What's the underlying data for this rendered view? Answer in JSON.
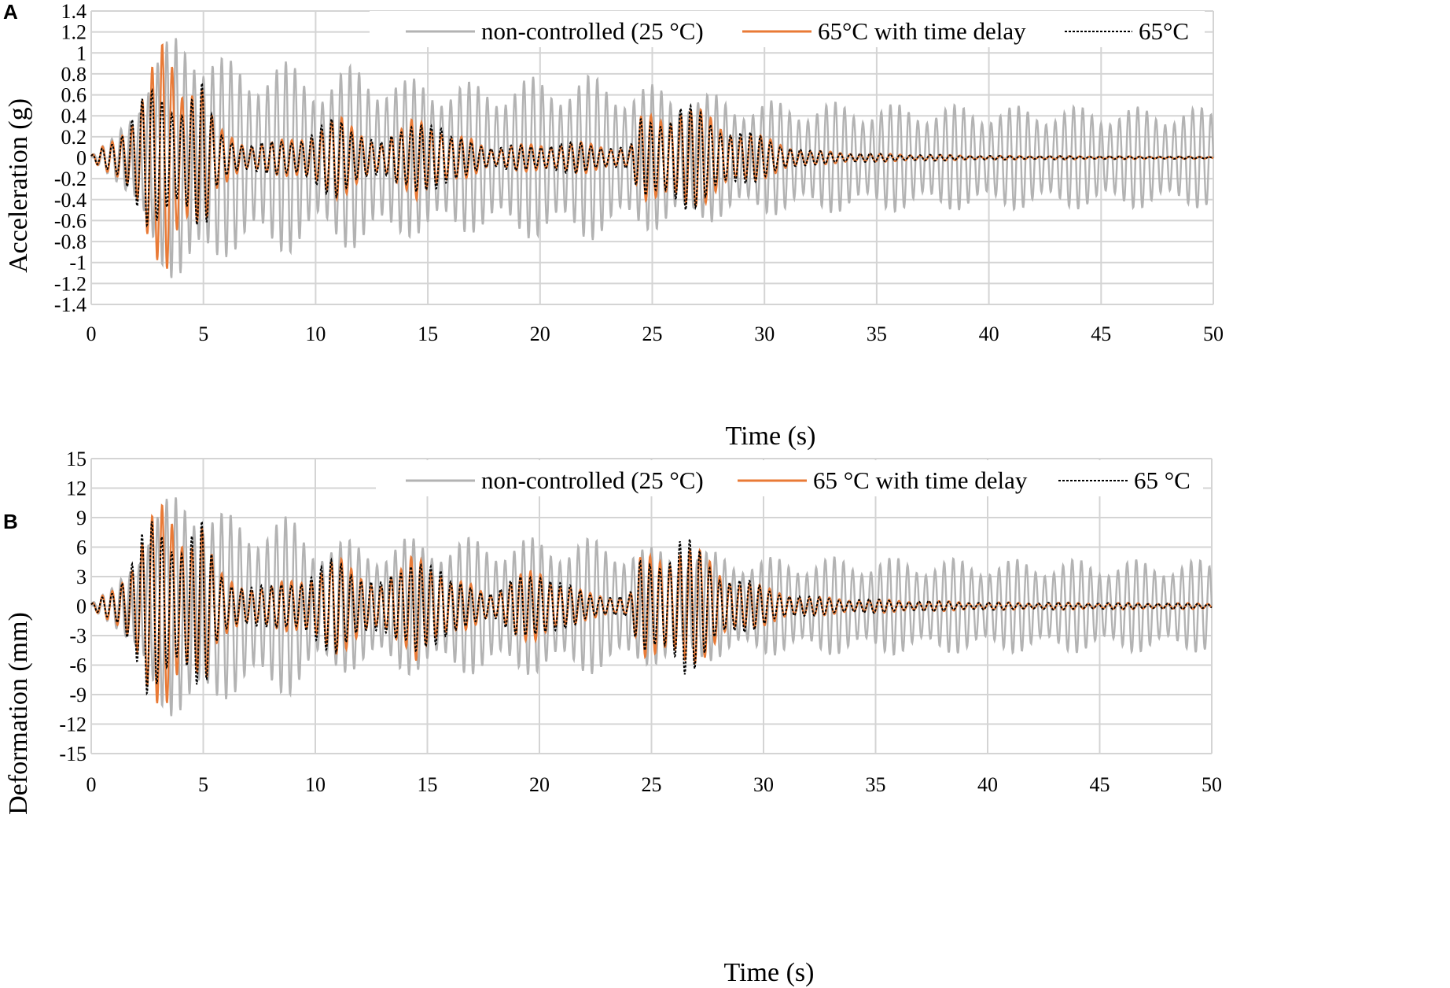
{
  "chart_data": [
    {
      "panel": "A",
      "type": "line",
      "xlabel": "Time (s)",
      "ylabel": "Acceleration (g)",
      "xlim": [
        0,
        50
      ],
      "ylim": [
        -1.4,
        1.4
      ],
      "xticks": [
        "0",
        "5",
        "10",
        "15",
        "20",
        "25",
        "30",
        "35",
        "40",
        "45",
        "50"
      ],
      "yticks": [
        "1.4",
        "1.2",
        "1",
        "0.8",
        "0.6",
        "0.4",
        "0.2",
        "0",
        "-0.2",
        "-0.4",
        "-0.6",
        "-0.8",
        "-1",
        "-1.2",
        "-1.4"
      ],
      "grid": true,
      "legend_position": "top-right",
      "series": [
        {
          "name": "non-controlled (25 °C)",
          "color": "#b3b3b3",
          "style": "solid",
          "envelope": {
            "t": [
              0,
              1,
              2,
              3,
              4,
              4.5,
              5,
              6,
              7,
              8,
              9,
              10,
              11,
              12,
              13,
              14,
              15,
              16,
              17,
              18,
              20,
              22,
              24,
              25,
              26,
              28,
              30,
              35,
              40,
              50
            ],
            "a": [
              0.02,
              0.2,
              0.6,
              1.0,
              1.3,
              1.33,
              1.15,
              0.95,
              0.9,
              0.97,
              0.9,
              0.8,
              0.85,
              0.9,
              0.85,
              0.75,
              0.8,
              0.75,
              0.72,
              0.75,
              0.78,
              0.8,
              0.72,
              0.7,
              0.68,
              0.6,
              0.55,
              0.52,
              0.5,
              0.48
            ]
          }
        },
        {
          "name": "65°C with time delay",
          "color": "#e97a36",
          "style": "solid",
          "envelope": {
            "t": [
              0,
              1,
              2,
              2.5,
              3,
              3.3,
              4,
              4.5,
              5,
              5.5,
              6,
              7,
              8,
              9,
              10,
              11,
              12,
              13,
              14,
              14.5,
              15,
              16,
              17,
              18,
              20,
              22,
              24,
              24.5,
              26,
              26.3,
              28,
              30,
              32,
              35,
              40,
              50
            ],
            "a": [
              0.02,
              0.2,
              0.5,
              0.8,
              1.0,
              1.2,
              0.85,
              0.9,
              0.8,
              0.3,
              0.25,
              0.15,
              0.15,
              0.2,
              0.3,
              0.4,
              0.3,
              0.15,
              0.3,
              0.5,
              0.45,
              0.2,
              0.2,
              0.1,
              0.15,
              0.15,
              0.1,
              0.4,
              0.5,
              0.58,
              0.35,
              0.2,
              0.07,
              0.04,
              0.02,
              0.01
            ]
          }
        },
        {
          "name": "65°C",
          "color": "#000000",
          "style": "dashed",
          "envelope": {
            "t": [
              0,
              1,
              2,
              2.5,
              3,
              4,
              4.5,
              5,
              5.5,
              6,
              7,
              8,
              9,
              10,
              11,
              12,
              13,
              14,
              14.5,
              15,
              16,
              17,
              18,
              20,
              22,
              24,
              24.5,
              26,
              26.3,
              28,
              30,
              32,
              35,
              40,
              50
            ],
            "a": [
              0.02,
              0.2,
              0.5,
              0.65,
              0.65,
              0.6,
              0.7,
              0.75,
              0.3,
              0.22,
              0.15,
              0.15,
              0.2,
              0.3,
              0.4,
              0.3,
              0.15,
              0.3,
              0.5,
              0.45,
              0.2,
              0.2,
              0.1,
              0.15,
              0.15,
              0.1,
              0.4,
              0.5,
              0.55,
              0.35,
              0.2,
              0.07,
              0.04,
              0.02,
              0.01
            ]
          }
        }
      ]
    },
    {
      "panel": "B",
      "type": "line",
      "xlabel": "Time (s)",
      "ylabel": "Deformation (mm)",
      "xlim": [
        0,
        50
      ],
      "ylim": [
        -15,
        15
      ],
      "xticks": [
        "0",
        "5",
        "10",
        "15",
        "20",
        "25",
        "30",
        "35",
        "40",
        "45",
        "50"
      ],
      "yticks": [
        "15",
        "12",
        "9",
        "6",
        "3",
        "0",
        "-3",
        "-6",
        "-9",
        "-12",
        "-15"
      ],
      "grid": true,
      "legend_position": "top-right",
      "series": [
        {
          "name": "non-controlled (25 °C)",
          "color": "#b3b3b3",
          "style": "solid",
          "envelope": {
            "t": [
              0,
              1,
              2,
              3,
              4,
              4.5,
              5,
              6,
              7,
              8,
              9,
              10,
              11,
              12,
              13,
              14,
              15,
              16,
              17,
              18,
              20,
              22,
              24,
              25,
              26,
              28,
              30,
              35,
              40,
              50
            ],
            "a": [
              0.3,
              2,
              6,
              10,
              12.5,
              13,
              11,
              9.5,
              9,
              9.5,
              9,
              7,
              7,
              6.5,
              6.5,
              7,
              7,
              7,
              7,
              7,
              7,
              7,
              6.5,
              6,
              6,
              5.5,
              5,
              5,
              4.8,
              4.7
            ]
          }
        },
        {
          "name": "65 °C with time delay",
          "color": "#e97a36",
          "style": "solid",
          "envelope": {
            "t": [
              0,
              1,
              2,
              2.5,
              3,
              3.3,
              4,
              4.5,
              5,
              5.5,
              6,
              7,
              8,
              9,
              10,
              11,
              12,
              13,
              14,
              14.5,
              15,
              16,
              17,
              18,
              19,
              20,
              21,
              22,
              24,
              24.5,
              26,
              26.3,
              28,
              30,
              32,
              35,
              40,
              50
            ],
            "a": [
              0.2,
              2,
              6,
              9,
              10,
              11,
              9,
              9,
              10,
              4,
              3,
              2.5,
              2,
              3,
              4,
              5,
              4,
              2.5,
              4,
              7,
              6,
              2.5,
              2.5,
              1.5,
              3,
              4.5,
              2.5,
              1.5,
              1,
              5,
              6.5,
              7.5,
              4,
              2,
              1,
              0.7,
              0.4,
              0.3
            ]
          }
        },
        {
          "name": "65 °C",
          "color": "#000000",
          "style": "dashed",
          "envelope": {
            "t": [
              0,
              1,
              2,
              2.5,
              3,
              4,
              4.5,
              5,
              5.5,
              6,
              7,
              8,
              9,
              10,
              11,
              12,
              13,
              14,
              14.5,
              15,
              16,
              17,
              18,
              19,
              20,
              21,
              22,
              24,
              24.5,
              26,
              26.3,
              28,
              30,
              32,
              35,
              40,
              50
            ],
            "a": [
              0.2,
              2,
              6,
              9,
              8.5,
              8,
              9,
              9,
              4,
              3,
              2.5,
              2,
              3,
              4,
              5,
              4,
              2.5,
              4,
              7,
              6,
              2.5,
              2.5,
              1.5,
              3,
              4.5,
              2.5,
              1.5,
              1,
              5,
              6.5,
              7.8,
              4,
              2,
              1,
              0.7,
              0.4,
              0.3
            ]
          }
        }
      ]
    }
  ]
}
